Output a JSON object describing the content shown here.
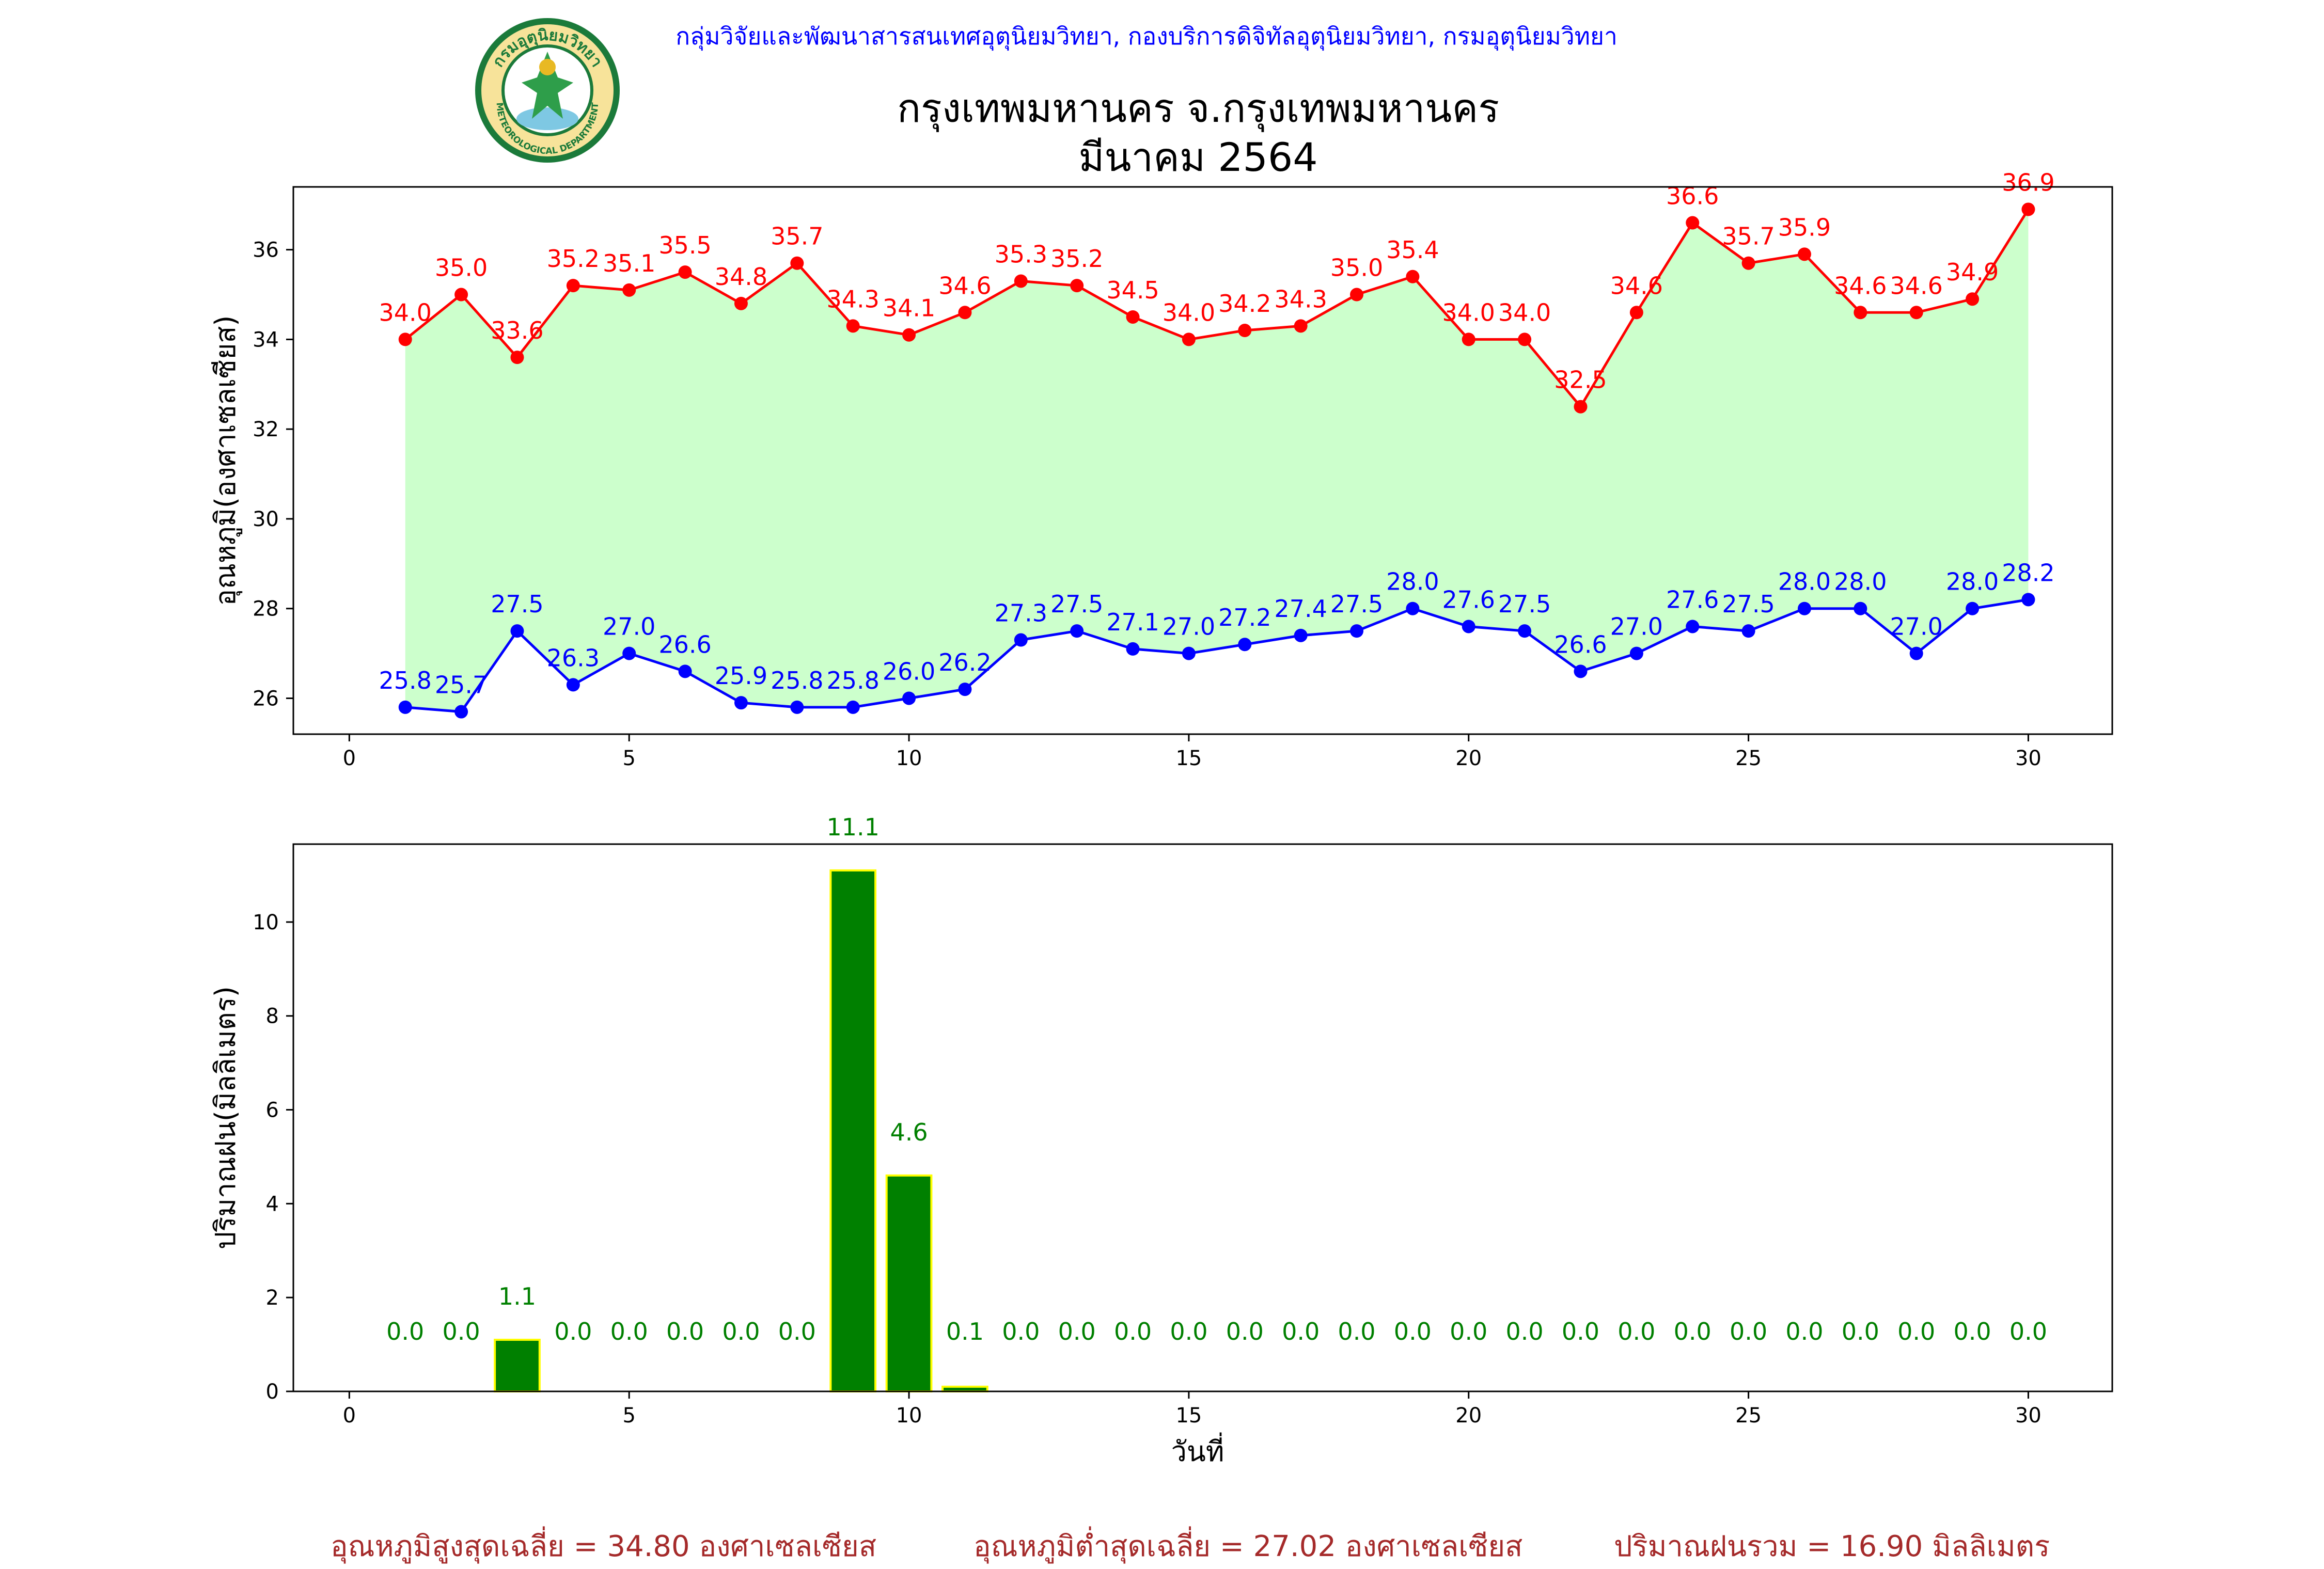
{
  "header": {
    "dept_line": "กลุ่มวิจัยและพัฒนาสารสนเทศอุตุนิยมวิทยา, กองบริการดิจิทัลอุตุนิยมวิทยา, กรมอุตุนิยมวิทยา",
    "title_line1": "กรุงเทพมหานคร จ.กรุงเทพมหานคร",
    "title_line2": "มีนาคม 2564",
    "logo_text_top": "กรมอุตุนิยมวิทยา",
    "logo_text_bottom": "METEOROLOGICAL DEPARTMENT"
  },
  "summary": {
    "avg_max": "อุณหภูมิสูงสุดเฉลี่ย = 34.80 องศาเซลเซียส",
    "avg_min": "อุณหภูมิต่ำสุดเฉลี่ย = 27.02 องศาเซลเซียส",
    "rain_total": "ปริมาณฝนรวม = 16.90 มิลลิเมตร"
  },
  "colors": {
    "max_line": "#ff0000",
    "min_line": "#0000ff",
    "fill": "#ccffcc",
    "bar": "#008000",
    "bar_edge": "#ffff00",
    "summary_text": "#a52a2a",
    "dept_text": "#0000ff"
  },
  "chart_data": [
    {
      "type": "line",
      "ylabel": "อุณหภูมิ(องศาเซลเซียส)",
      "xlim": [
        -1,
        31.5
      ],
      "ylim": [
        25.2,
        37.4
      ],
      "xticks": [
        0,
        5,
        10,
        15,
        20,
        25,
        30
      ],
      "yticks": [
        26,
        28,
        30,
        32,
        34,
        36
      ],
      "x": [
        1,
        2,
        3,
        4,
        5,
        6,
        7,
        8,
        9,
        10,
        11,
        12,
        13,
        14,
        15,
        16,
        17,
        18,
        19,
        20,
        21,
        22,
        23,
        24,
        25,
        26,
        27,
        28,
        29,
        30
      ],
      "fill_between": true,
      "series": [
        {
          "key": "max",
          "values": [
            34.0,
            35.0,
            33.6,
            35.2,
            35.1,
            35.5,
            34.8,
            35.7,
            34.3,
            34.1,
            34.6,
            35.3,
            35.2,
            34.5,
            34.0,
            34.2,
            34.3,
            35.0,
            35.4,
            34.0,
            34.0,
            32.5,
            34.6,
            36.6,
            35.7,
            35.9,
            34.6,
            34.6,
            34.9,
            36.9
          ]
        },
        {
          "key": "min",
          "values": [
            25.8,
            25.7,
            27.5,
            26.3,
            27.0,
            26.6,
            25.9,
            25.8,
            25.8,
            26.0,
            26.2,
            27.3,
            27.5,
            27.1,
            27.0,
            27.2,
            27.4,
            27.5,
            28.0,
            27.6,
            27.5,
            26.6,
            27.0,
            27.6,
            27.5,
            28.0,
            28.0,
            27.0,
            28.0,
            28.2
          ]
        }
      ]
    },
    {
      "type": "bar",
      "xlabel": "วันที่",
      "ylabel": "ปริมาณฝน(มิลลิเมตร)",
      "xlim": [
        -1,
        31.5
      ],
      "ylim": [
        0,
        11.66
      ],
      "xticks": [
        0,
        5,
        10,
        15,
        20,
        25,
        30
      ],
      "yticks": [
        0,
        2,
        4,
        6,
        8,
        10
      ],
      "x": [
        1,
        2,
        3,
        4,
        5,
        6,
        7,
        8,
        9,
        10,
        11,
        12,
        13,
        14,
        15,
        16,
        17,
        18,
        19,
        20,
        21,
        22,
        23,
        24,
        25,
        26,
        27,
        28,
        29,
        30
      ],
      "values": [
        0.0,
        0.0,
        1.1,
        0.0,
        0.0,
        0.0,
        0.0,
        0.0,
        11.1,
        4.6,
        0.1,
        0.0,
        0.0,
        0.0,
        0.0,
        0.0,
        0.0,
        0.0,
        0.0,
        0.0,
        0.0,
        0.0,
        0.0,
        0.0,
        0.0,
        0.0,
        0.0,
        0.0,
        0.0,
        0.0
      ]
    }
  ]
}
